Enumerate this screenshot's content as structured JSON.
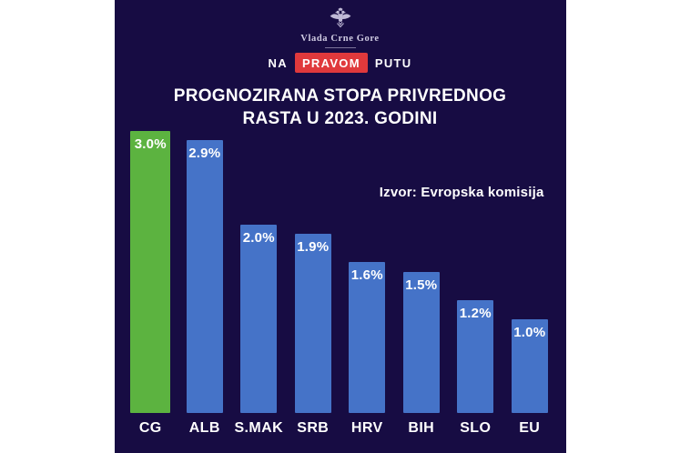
{
  "header": {
    "crest_icon": "montenegro-coat-of-arms-icon",
    "gov_name": "Vlada Crne Gore",
    "slogan": {
      "pre": "NA",
      "highlight": "PRAVOM",
      "post": "PUTU"
    }
  },
  "title": {
    "line1": "PROGNOZIRANA STOPA PRIVREDNOG",
    "line2": "RASTA U 2023. GODINI"
  },
  "source": "Izvor: Evropska komisija",
  "colors": {
    "background_navy": "#170c43",
    "bar_blue": "#4573c8",
    "bar_green_highlight": "#5cb340",
    "slogan_red": "#e0393c",
    "text_white": "#ffffff",
    "crest_silver": "#c9c3de"
  },
  "chart_data": {
    "type": "bar",
    "title": "PROGNOZIRANA STOPA PRIVREDNOG RASTA U 2023. GODINI",
    "source": "Izvor: Evropska komisija",
    "categories": [
      "CG",
      "ALB",
      "S.MAK",
      "SRB",
      "HRV",
      "BIH",
      "SLO",
      "EU"
    ],
    "values": [
      3.0,
      2.9,
      2.0,
      1.9,
      1.6,
      1.5,
      1.2,
      1.0
    ],
    "value_labels": [
      "3.0%",
      "2.9%",
      "2.0%",
      "1.9%",
      "1.6%",
      "1.5%",
      "1.2%",
      "1.0%"
    ],
    "bar_colors": [
      "#5cb340",
      "#4573c8",
      "#4573c8",
      "#4573c8",
      "#4573c8",
      "#4573c8",
      "#4573c8",
      "#4573c8"
    ],
    "highlight_index": 0,
    "xlabel": "",
    "ylabel": "",
    "ylim": [
      0,
      3.0
    ],
    "grid": false,
    "legend": false,
    "value_label_position": "inside-top",
    "unit": "%"
  }
}
